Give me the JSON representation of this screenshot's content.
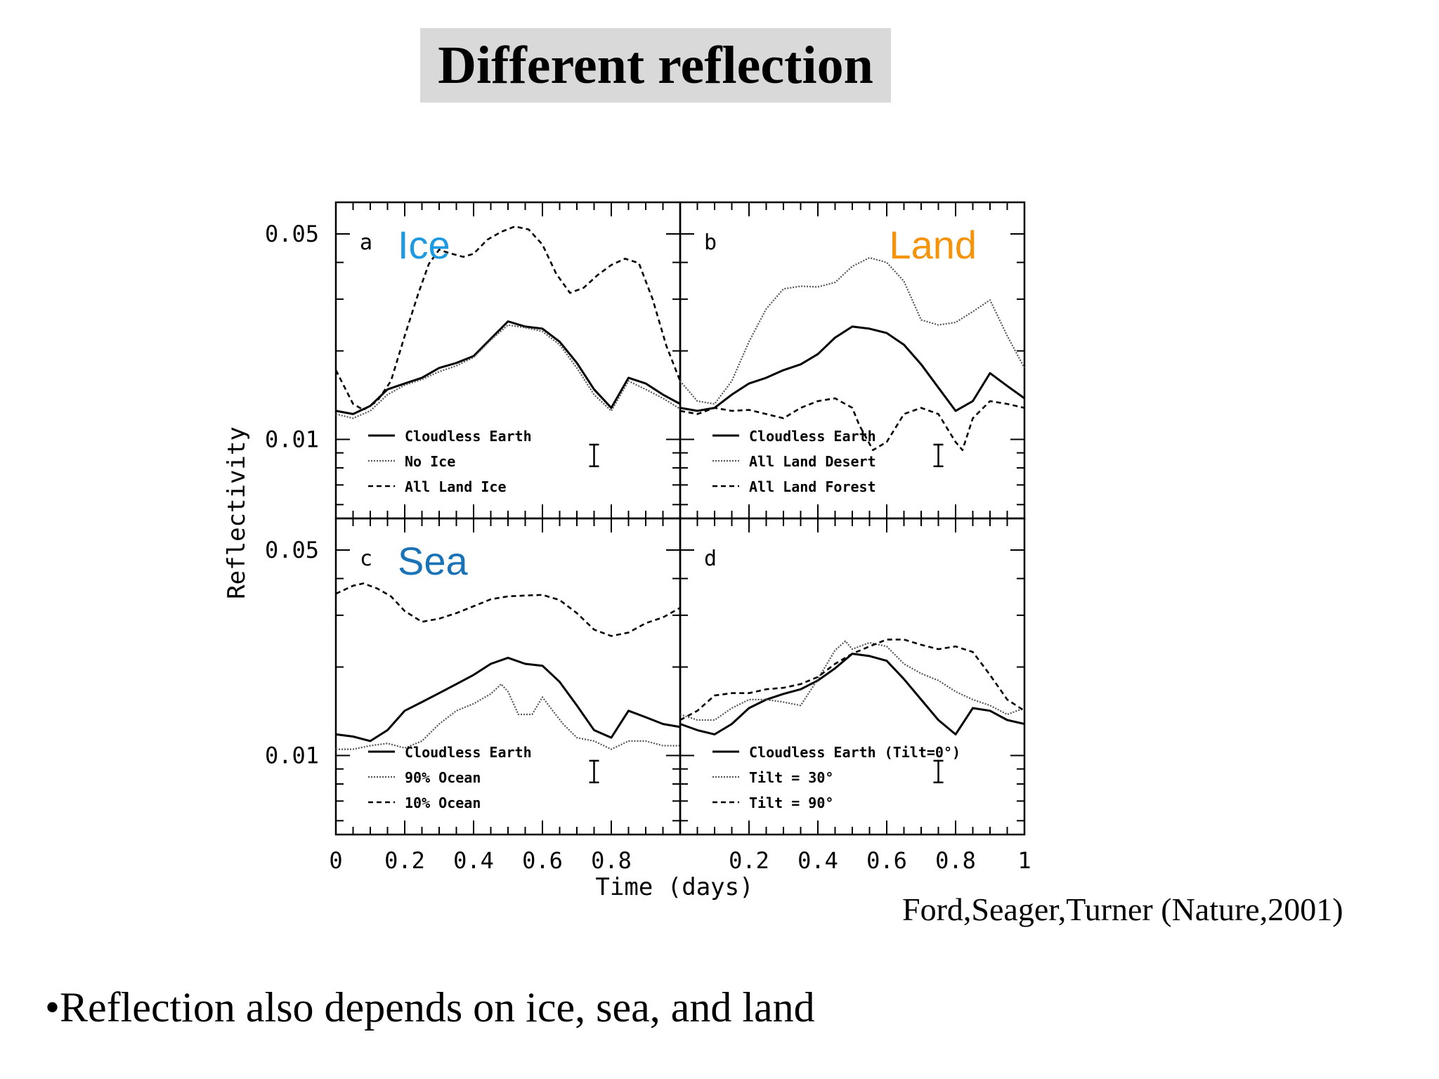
{
  "slide": {
    "title": "Different reflection",
    "citation": "Ford,Seager,Turner (Nature,2001)",
    "bullet": "•Reflection also depends on ice, sea, and land"
  },
  "chart_data": {
    "type": "line",
    "ylabel": "Reflectivity",
    "xlabel": "Time (days)",
    "yscale": "log",
    "ylim": [
      0.006,
      0.06
    ],
    "xlim": [
      0,
      1
    ],
    "x_ticks_left": [
      "0",
      "0.2",
      "0.4",
      "0.6",
      "0.8"
    ],
    "x_ticks_right": [
      "0.2",
      "0.4",
      "0.6",
      "0.8",
      "1"
    ],
    "y_ticks": [
      "0.05",
      "0.01"
    ],
    "panels": [
      {
        "letter": "a",
        "region": "Ice",
        "region_color": "#1e9be0",
        "legend": [
          "Cloudless Earth",
          "No Ice",
          "All Land Ice"
        ],
        "series": [
          {
            "style": "solid",
            "x": [
              0,
              0.05,
              0.1,
              0.15,
              0.2,
              0.25,
              0.3,
              0.35,
              0.4,
              0.45,
              0.5,
              0.55,
              0.6,
              0.65,
              0.7,
              0.75,
              0.8,
              0.85,
              0.9,
              0.95,
              1.0
            ],
            "y": [
              0.0125,
              0.0122,
              0.013,
              0.0148,
              0.0155,
              0.0162,
              0.0175,
              0.0182,
              0.0192,
              0.022,
              0.0252,
              0.0242,
              0.0238,
              0.0215,
              0.0182,
              0.0148,
              0.0128,
              0.0162,
              0.0155,
              0.0142,
              0.0132
            ]
          },
          {
            "style": "dotted",
            "x": [
              0,
              0.05,
              0.1,
              0.15,
              0.2,
              0.25,
              0.3,
              0.35,
              0.4,
              0.45,
              0.5,
              0.55,
              0.6,
              0.65,
              0.7,
              0.75,
              0.8,
              0.85,
              0.9,
              0.95,
              1.0
            ],
            "y": [
              0.0122,
              0.0118,
              0.0125,
              0.0142,
              0.0153,
              0.016,
              0.017,
              0.0178,
              0.019,
              0.0218,
              0.0245,
              0.024,
              0.0233,
              0.021,
              0.0175,
              0.0142,
              0.0125,
              0.0158,
              0.0148,
              0.0138,
              0.0127
            ]
          },
          {
            "style": "dashed",
            "x": [
              0,
              0.05,
              0.08,
              0.12,
              0.16,
              0.2,
              0.24,
              0.27,
              0.3,
              0.33,
              0.37,
              0.4,
              0.44,
              0.48,
              0.52,
              0.56,
              0.6,
              0.64,
              0.68,
              0.72,
              0.76,
              0.8,
              0.84,
              0.88,
              0.92,
              0.96,
              1.0
            ],
            "y": [
              0.0172,
              0.0132,
              0.0126,
              0.0135,
              0.0158,
              0.0225,
              0.0315,
              0.0395,
              0.0442,
              0.043,
              0.0418,
              0.0428,
              0.0478,
              0.0508,
              0.053,
              0.0518,
              0.046,
              0.0366,
              0.0315,
              0.0328,
              0.0362,
              0.0392,
              0.0412,
              0.0398,
              0.03,
              0.0208,
              0.0158
            ]
          }
        ],
        "error_bar": {
          "x": 0.75,
          "y_low": 0.0081,
          "y_high": 0.0096
        }
      },
      {
        "letter": "b",
        "region": "Land",
        "region_color": "#f5930a",
        "legend": [
          "Cloudless Earth",
          "All Land Desert",
          "All Land Forest"
        ],
        "series": [
          {
            "style": "solid",
            "x": [
              0,
              0.05,
              0.1,
              0.15,
              0.2,
              0.25,
              0.3,
              0.35,
              0.4,
              0.45,
              0.5,
              0.55,
              0.6,
              0.65,
              0.7,
              0.75,
              0.8,
              0.85,
              0.9,
              0.95,
              1.0
            ],
            "y": [
              0.0128,
              0.0125,
              0.0128,
              0.0142,
              0.0155,
              0.0162,
              0.0172,
              0.018,
              0.0195,
              0.0222,
              0.0242,
              0.0238,
              0.023,
              0.021,
              0.018,
              0.015,
              0.0125,
              0.0135,
              0.0168,
              0.0152,
              0.0138
            ]
          },
          {
            "style": "dotted",
            "x": [
              0,
              0.05,
              0.1,
              0.15,
              0.2,
              0.25,
              0.3,
              0.35,
              0.4,
              0.45,
              0.5,
              0.55,
              0.6,
              0.65,
              0.7,
              0.75,
              0.8,
              0.85,
              0.9,
              0.95,
              1.0
            ],
            "y": [
              0.0158,
              0.0135,
              0.0132,
              0.0158,
              0.0215,
              0.0278,
              0.0325,
              0.0332,
              0.033,
              0.0342,
              0.0388,
              0.0415,
              0.04,
              0.0345,
              0.0255,
              0.0245,
              0.025,
              0.0272,
              0.0298,
              0.0225,
              0.0175
            ]
          },
          {
            "style": "dashed",
            "x": [
              0,
              0.05,
              0.1,
              0.15,
              0.2,
              0.25,
              0.3,
              0.35,
              0.4,
              0.45,
              0.5,
              0.52,
              0.56,
              0.6,
              0.65,
              0.7,
              0.75,
              0.8,
              0.82,
              0.85,
              0.9,
              0.95,
              1.0
            ],
            "y": [
              0.0125,
              0.0122,
              0.0128,
              0.0125,
              0.0126,
              0.0122,
              0.0118,
              0.0128,
              0.0135,
              0.0138,
              0.0128,
              0.0112,
              0.0092,
              0.0098,
              0.0122,
              0.0128,
              0.0122,
              0.0098,
              0.0092,
              0.0118,
              0.0135,
              0.0132,
              0.0128
            ]
          }
        ],
        "error_bar": {
          "x": 0.75,
          "y_low": 0.0081,
          "y_high": 0.0096
        }
      },
      {
        "letter": "c",
        "region": "Sea",
        "region_color": "#1a73b7",
        "legend": [
          "Cloudless Earth",
          "90% Ocean",
          "10% Ocean"
        ],
        "series": [
          {
            "style": "solid",
            "x": [
              0,
              0.05,
              0.1,
              0.15,
              0.2,
              0.25,
              0.3,
              0.35,
              0.4,
              0.45,
              0.5,
              0.55,
              0.6,
              0.65,
              0.7,
              0.75,
              0.8,
              0.85,
              0.9,
              0.95,
              1.0
            ],
            "y": [
              0.0118,
              0.0116,
              0.0112,
              0.0122,
              0.0142,
              0.0152,
              0.0163,
              0.0175,
              0.0188,
              0.0205,
              0.0215,
              0.0205,
              0.0202,
              0.0178,
              0.0148,
              0.0122,
              0.0115,
              0.0142,
              0.0135,
              0.0128,
              0.0125
            ]
          },
          {
            "style": "dotted",
            "x": [
              0,
              0.05,
              0.1,
              0.15,
              0.2,
              0.25,
              0.3,
              0.35,
              0.4,
              0.45,
              0.48,
              0.5,
              0.53,
              0.57,
              0.6,
              0.63,
              0.66,
              0.7,
              0.75,
              0.8,
              0.85,
              0.9,
              0.95,
              1.0
            ],
            "y": [
              0.0105,
              0.0105,
              0.0108,
              0.011,
              0.0106,
              0.0112,
              0.0128,
              0.0142,
              0.015,
              0.0162,
              0.0175,
              0.0165,
              0.0138,
              0.0138,
              0.0158,
              0.0142,
              0.0128,
              0.0115,
              0.0112,
              0.0105,
              0.0112,
              0.0112,
              0.0108,
              0.0108
            ]
          },
          {
            "style": "dashed",
            "x": [
              0,
              0.05,
              0.08,
              0.12,
              0.16,
              0.2,
              0.25,
              0.3,
              0.35,
              0.4,
              0.45,
              0.5,
              0.55,
              0.6,
              0.65,
              0.7,
              0.75,
              0.8,
              0.85,
              0.9,
              0.95,
              1.0
            ],
            "y": [
              0.0355,
              0.0378,
              0.0385,
              0.037,
              0.0348,
              0.031,
              0.0285,
              0.0292,
              0.0305,
              0.0322,
              0.034,
              0.0348,
              0.035,
              0.0352,
              0.0338,
              0.0305,
              0.0268,
              0.0255,
              0.0262,
              0.0282,
              0.0295,
              0.0318
            ]
          }
        ],
        "error_bar": {
          "x": 0.75,
          "y_low": 0.0081,
          "y_high": 0.0096
        }
      },
      {
        "letter": "d",
        "region": "",
        "legend": [
          "Cloudless Earth (Tilt=0°)",
          "Tilt = 30°",
          "Tilt = 90°"
        ],
        "series": [
          {
            "style": "solid",
            "x": [
              0,
              0.05,
              0.1,
              0.15,
              0.2,
              0.25,
              0.3,
              0.35,
              0.4,
              0.45,
              0.5,
              0.55,
              0.6,
              0.65,
              0.7,
              0.75,
              0.8,
              0.85,
              0.9,
              0.95,
              1.0
            ],
            "y": [
              0.0128,
              0.0122,
              0.0118,
              0.0128,
              0.0145,
              0.0155,
              0.0162,
              0.0168,
              0.018,
              0.0198,
              0.0222,
              0.0218,
              0.021,
              0.0182,
              0.0155,
              0.0132,
              0.0118,
              0.0145,
              0.0142,
              0.0132,
              0.0128
            ]
          },
          {
            "style": "dotted",
            "x": [
              0,
              0.05,
              0.1,
              0.15,
              0.2,
              0.25,
              0.3,
              0.35,
              0.4,
              0.45,
              0.48,
              0.5,
              0.55,
              0.6,
              0.65,
              0.7,
              0.75,
              0.8,
              0.85,
              0.9,
              0.95,
              1.0
            ],
            "y": [
              0.0138,
              0.0132,
              0.0132,
              0.0145,
              0.0155,
              0.0155,
              0.0152,
              0.0148,
              0.0182,
              0.0228,
              0.0245,
              0.023,
              0.0242,
              0.0235,
              0.0205,
              0.019,
              0.018,
              0.0165,
              0.0155,
              0.0148,
              0.0138,
              0.0145
            ]
          },
          {
            "style": "dashed",
            "x": [
              0,
              0.05,
              0.1,
              0.15,
              0.2,
              0.25,
              0.3,
              0.35,
              0.4,
              0.45,
              0.5,
              0.55,
              0.6,
              0.65,
              0.7,
              0.75,
              0.8,
              0.85,
              0.9,
              0.95,
              1.0
            ],
            "y": [
              0.0132,
              0.0142,
              0.016,
              0.0163,
              0.0163,
              0.0168,
              0.017,
              0.0175,
              0.0185,
              0.0205,
              0.0222,
              0.0235,
              0.0248,
              0.0248,
              0.0238,
              0.023,
              0.0235,
              0.0225,
              0.0188,
              0.0155,
              0.0142
            ]
          }
        ],
        "error_bar": {
          "x": 0.75,
          "y_low": 0.0081,
          "y_high": 0.0096
        }
      }
    ]
  }
}
